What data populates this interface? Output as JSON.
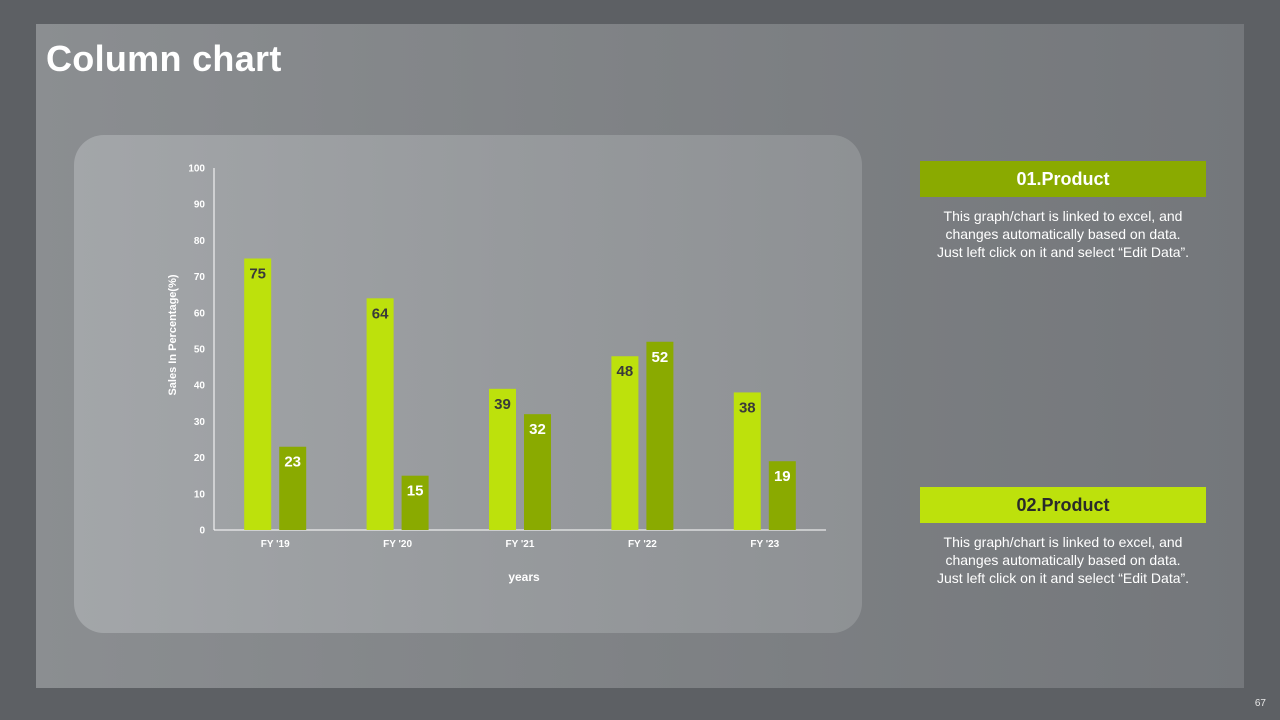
{
  "slide": {
    "title": "Column chart",
    "page_number": "67"
  },
  "products": [
    {
      "title": "01.Product",
      "description": "This graph/chart is linked to excel, and changes automatically based on data. Just left click on it and select “Edit Data”.",
      "color": "#8aaa00"
    },
    {
      "title": "02.Product",
      "description": "This graph/chart is linked to excel, and changes automatically based on data. Just left click on it and select “Edit Data”.",
      "color": "#bde10c"
    }
  ],
  "chart_data": {
    "type": "bar",
    "title": "",
    "xlabel": "years",
    "ylabel": "Sales In Percentage(%)",
    "ylim": [
      0,
      100
    ],
    "yticks": [
      0,
      10,
      20,
      30,
      40,
      50,
      60,
      70,
      80,
      90,
      100
    ],
    "categories": [
      "FY '19",
      "FY '20",
      "FY '21",
      "FY '22",
      "FY '23"
    ],
    "series": [
      {
        "values": [
          75,
          64,
          39,
          48,
          38
        ],
        "color": "#bde10c",
        "label_color": "#3a3a3a"
      },
      {
        "values": [
          23,
          15,
          32,
          52,
          19
        ],
        "color": "#8aaa00",
        "label_color": "#ffffff"
      }
    ],
    "grid": false,
    "legend": "none"
  }
}
